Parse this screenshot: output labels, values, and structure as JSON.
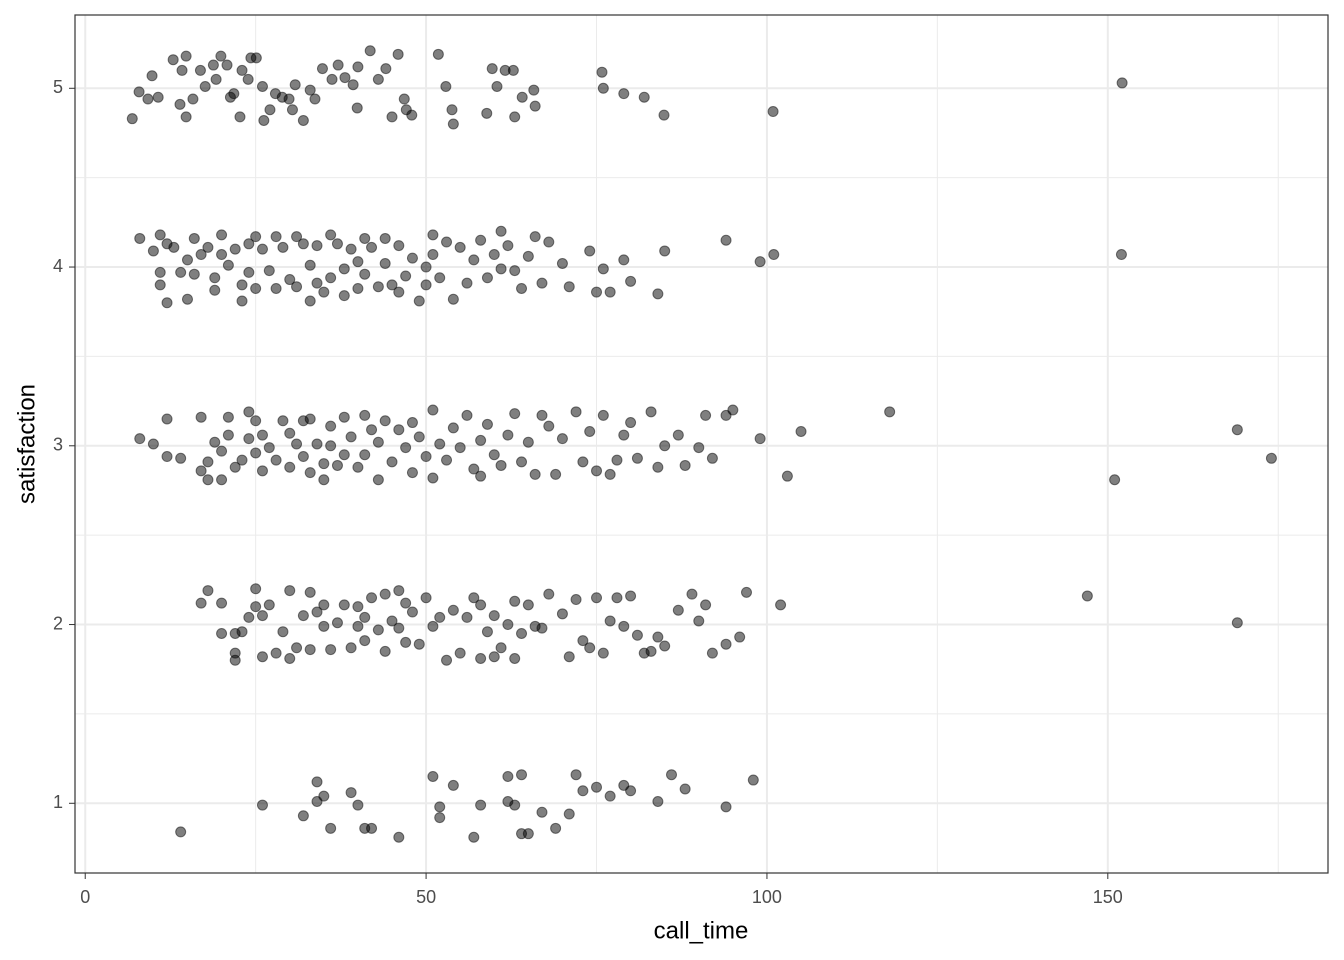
{
  "chart_data": {
    "type": "scatter",
    "x_label": "call_time",
    "y_label": "satisfaction",
    "xlim": [
      -1.5,
      182.3
    ],
    "ylim": [
      0.61,
      5.41
    ],
    "xticks": [
      0,
      50,
      100,
      150
    ],
    "yticks": [
      1,
      2,
      3,
      4,
      5
    ],
    "xminor": [
      25,
      75,
      125,
      175
    ],
    "yminor": [
      1.5,
      2.5,
      3.5,
      4.5
    ],
    "grid": true,
    "color": "#000000",
    "opacity": 0.5,
    "x": [
      6.9,
      7.9,
      9.8,
      9.2,
      10.7,
      12.9,
      13.9,
      14.8,
      14.8,
      14.2,
      15.8,
      16.9,
      17.6,
      18.8,
      19.2,
      19.9,
      20.8,
      21.3,
      21.8,
      22.7,
      23.0,
      23.9,
      24.3,
      25.1,
      26.0,
      26.2,
      27.1,
      27.9,
      28.9,
      29.9,
      30.4,
      30.8,
      32.0,
      33.0,
      33.7,
      34.8,
      36.2,
      37.1,
      38.1,
      39.3,
      39.9,
      40.0,
      41.8,
      43.0,
      44.1,
      45.0,
      45.9,
      46.8,
      47.1,
      47.9,
      51.8,
      52.9,
      53.8,
      54.0,
      58.9,
      59.7,
      60.4,
      61.6,
      62.8,
      63.0,
      64.1,
      65.8,
      66.0,
      75.8,
      76.0,
      79.0,
      82.0,
      84.9,
      100.9,
      152.1,
      8,
      10,
      11,
      11,
      11,
      12,
      12,
      13,
      14,
      15,
      15,
      16,
      16,
      17,
      18,
      19,
      19,
      20,
      20,
      21,
      22,
      23,
      23,
      24,
      24,
      25,
      25,
      26,
      27,
      28,
      28,
      29,
      30,
      31,
      31,
      32,
      33,
      33,
      34,
      34,
      35,
      36,
      36,
      37,
      38,
      38,
      39,
      40,
      40,
      41,
      41,
      42,
      43,
      44,
      44,
      45,
      46,
      46,
      47,
      48,
      49,
      50,
      50,
      51,
      51,
      52,
      53,
      54,
      55,
      56,
      57,
      58,
      59,
      60,
      61,
      61,
      62,
      63,
      64,
      65,
      66,
      67,
      68,
      70,
      71,
      74,
      75,
      76,
      77,
      79,
      80,
      84,
      85,
      94,
      99,
      101,
      152,
      8,
      10,
      12,
      12,
      14,
      17,
      17,
      18,
      18,
      19,
      20,
      20,
      21,
      21,
      22,
      23,
      24,
      24,
      25,
      25,
      26,
      26,
      27,
      28,
      29,
      30,
      30,
      31,
      32,
      32,
      33,
      33,
      34,
      35,
      35,
      36,
      36,
      37,
      38,
      38,
      39,
      40,
      41,
      41,
      42,
      43,
      43,
      44,
      45,
      46,
      47,
      48,
      48,
      49,
      50,
      51,
      51,
      52,
      53,
      54,
      55,
      56,
      57,
      58,
      58,
      59,
      60,
      61,
      62,
      63,
      64,
      65,
      66,
      67,
      68,
      69,
      70,
      72,
      73,
      74,
      75,
      76,
      77,
      78,
      79,
      80,
      81,
      83,
      84,
      85,
      87,
      88,
      90,
      91,
      92,
      94,
      95,
      99,
      103,
      105,
      118,
      151,
      169,
      174,
      17,
      18,
      20,
      20,
      22,
      22,
      22,
      23,
      24,
      25,
      25,
      26,
      26,
      27,
      28,
      29,
      30,
      30,
      31,
      32,
      33,
      33,
      34,
      35,
      35,
      36,
      37,
      38,
      39,
      40,
      40,
      41,
      41,
      42,
      43,
      44,
      44,
      45,
      46,
      46,
      47,
      47,
      48,
      49,
      50,
      51,
      52,
      53,
      54,
      55,
      56,
      57,
      58,
      58,
      59,
      60,
      60,
      61,
      62,
      63,
      63,
      64,
      65,
      66,
      67,
      68,
      70,
      71,
      72,
      73,
      74,
      75,
      76,
      77,
      78,
      79,
      80,
      81,
      82,
      83,
      84,
      85,
      87,
      89,
      90,
      91,
      92,
      94,
      96,
      97,
      102,
      147,
      169,
      14,
      26,
      32,
      34,
      34,
      35,
      36,
      39,
      40,
      41,
      42,
      46,
      51,
      52,
      52,
      54,
      57,
      58,
      62,
      62,
      63,
      64,
      64,
      65,
      67,
      69,
      71,
      72,
      73,
      75,
      77,
      79,
      80,
      84,
      86,
      88,
      94,
      98
    ],
    "y": [
      4.83,
      4.98,
      5.07,
      4.94,
      4.95,
      5.16,
      4.91,
      5.18,
      4.84,
      5.1,
      4.94,
      5.1,
      5.01,
      5.13,
      5.05,
      5.18,
      5.13,
      4.95,
      4.97,
      4.84,
      5.1,
      5.05,
      5.17,
      5.17,
      5.01,
      4.82,
      4.88,
      4.97,
      4.95,
      4.94,
      4.88,
      5.02,
      4.82,
      4.99,
      4.94,
      5.11,
      5.05,
      5.13,
      5.06,
      5.02,
      4.89,
      5.12,
      5.21,
      5.05,
      5.11,
      4.84,
      5.19,
      4.94,
      4.88,
      4.85,
      5.19,
      5.01,
      4.88,
      4.8,
      4.86,
      5.11,
      5.01,
      5.1,
      5.1,
      4.84,
      4.95,
      4.99,
      4.9,
      5.09,
      5.0,
      4.97,
      4.95,
      4.85,
      4.87,
      5.03,
      4.16,
      4.09,
      4.18,
      3.9,
      3.97,
      3.8,
      4.13,
      4.11,
      3.97,
      3.82,
      4.04,
      4.16,
      3.96,
      4.07,
      4.11,
      3.87,
      3.94,
      4.07,
      4.18,
      4.01,
      4.1,
      3.81,
      3.9,
      4.13,
      3.97,
      4.17,
      3.88,
      4.1,
      3.98,
      4.17,
      3.88,
      4.11,
      3.93,
      4.17,
      3.89,
      4.13,
      3.81,
      4.01,
      4.12,
      3.91,
      3.86,
      4.18,
      3.94,
      4.13,
      3.99,
      3.84,
      4.1,
      4.03,
      3.88,
      4.16,
      3.96,
      4.11,
      3.89,
      4.16,
      4.02,
      3.9,
      3.86,
      4.12,
      3.95,
      4.05,
      3.81,
      4.0,
      3.9,
      4.18,
      4.07,
      3.94,
      4.14,
      3.82,
      4.11,
      3.91,
      4.04,
      4.15,
      3.94,
      4.07,
      4.2,
      3.99,
      4.12,
      3.98,
      3.88,
      4.06,
      4.17,
      3.91,
      4.14,
      4.02,
      3.89,
      4.09,
      3.86,
      3.99,
      3.86,
      4.04,
      3.92,
      3.85,
      4.09,
      4.15,
      4.03,
      4.07,
      4.07,
      3.04,
      3.01,
      2.94,
      3.15,
      2.93,
      3.16,
      2.86,
      2.91,
      2.81,
      3.02,
      2.81,
      2.97,
      3.16,
      3.06,
      2.88,
      2.92,
      3.19,
      3.04,
      2.96,
      3.14,
      2.86,
      3.06,
      2.99,
      2.92,
      3.14,
      3.07,
      2.88,
      3.01,
      3.14,
      2.94,
      2.85,
      3.15,
      3.01,
      2.9,
      2.81,
      3.11,
      3.0,
      2.89,
      3.16,
      2.95,
      3.05,
      2.88,
      3.17,
      2.95,
      3.09,
      2.81,
      3.02,
      3.14,
      2.91,
      3.09,
      2.99,
      2.85,
      3.13,
      3.05,
      2.94,
      3.2,
      2.82,
      3.01,
      2.92,
      3.1,
      2.99,
      3.17,
      2.87,
      2.83,
      3.03,
      3.12,
      2.95,
      2.89,
      3.06,
      3.18,
      2.91,
      3.02,
      2.84,
      3.17,
      3.11,
      2.84,
      3.04,
      3.19,
      2.91,
      3.08,
      2.86,
      3.17,
      2.84,
      2.92,
      3.06,
      3.13,
      2.93,
      3.19,
      2.88,
      3.0,
      3.06,
      2.89,
      2.99,
      3.17,
      2.93,
      3.17,
      3.2,
      3.04,
      2.83,
      3.08,
      3.19,
      2.81,
      3.09,
      2.93,
      2.12,
      2.19,
      2.12,
      1.95,
      1.84,
      1.8,
      1.95,
      1.96,
      2.04,
      2.2,
      2.1,
      1.82,
      2.05,
      2.11,
      1.84,
      1.96,
      2.19,
      1.81,
      1.87,
      2.05,
      1.86,
      2.18,
      2.07,
      1.99,
      2.11,
      1.86,
      2.01,
      2.11,
      1.87,
      2.1,
      1.99,
      2.04,
      1.91,
      2.15,
      1.97,
      2.17,
      1.85,
      2.02,
      2.19,
      1.98,
      2.12,
      1.9,
      2.07,
      1.89,
      2.15,
      1.99,
      2.04,
      1.8,
      2.08,
      1.84,
      2.04,
      2.15,
      1.81,
      2.11,
      1.96,
      1.82,
      2.05,
      1.87,
      2.0,
      2.13,
      1.81,
      1.95,
      2.11,
      1.99,
      1.98,
      2.17,
      2.06,
      1.82,
      2.14,
      1.91,
      1.87,
      2.15,
      1.84,
      2.02,
      2.15,
      1.99,
      2.16,
      1.94,
      1.84,
      1.85,
      1.93,
      1.88,
      2.08,
      2.17,
      2.02,
      2.11,
      1.84,
      1.89,
      1.93,
      2.18,
      2.11,
      2.16,
      2.01,
      0.84,
      0.99,
      0.93,
      1.12,
      1.01,
      1.04,
      0.86,
      1.06,
      0.99,
      0.86,
      0.86,
      0.81,
      1.15,
      0.98,
      0.92,
      1.1,
      0.81,
      0.99,
      1.15,
      1.01,
      0.99,
      1.16,
      0.83,
      0.83,
      0.95,
      0.86,
      0.94,
      1.16,
      1.07,
      1.09,
      1.04,
      1.1,
      1.07,
      1.01,
      1.16,
      1.08,
      0.98,
      1.13
    ]
  }
}
